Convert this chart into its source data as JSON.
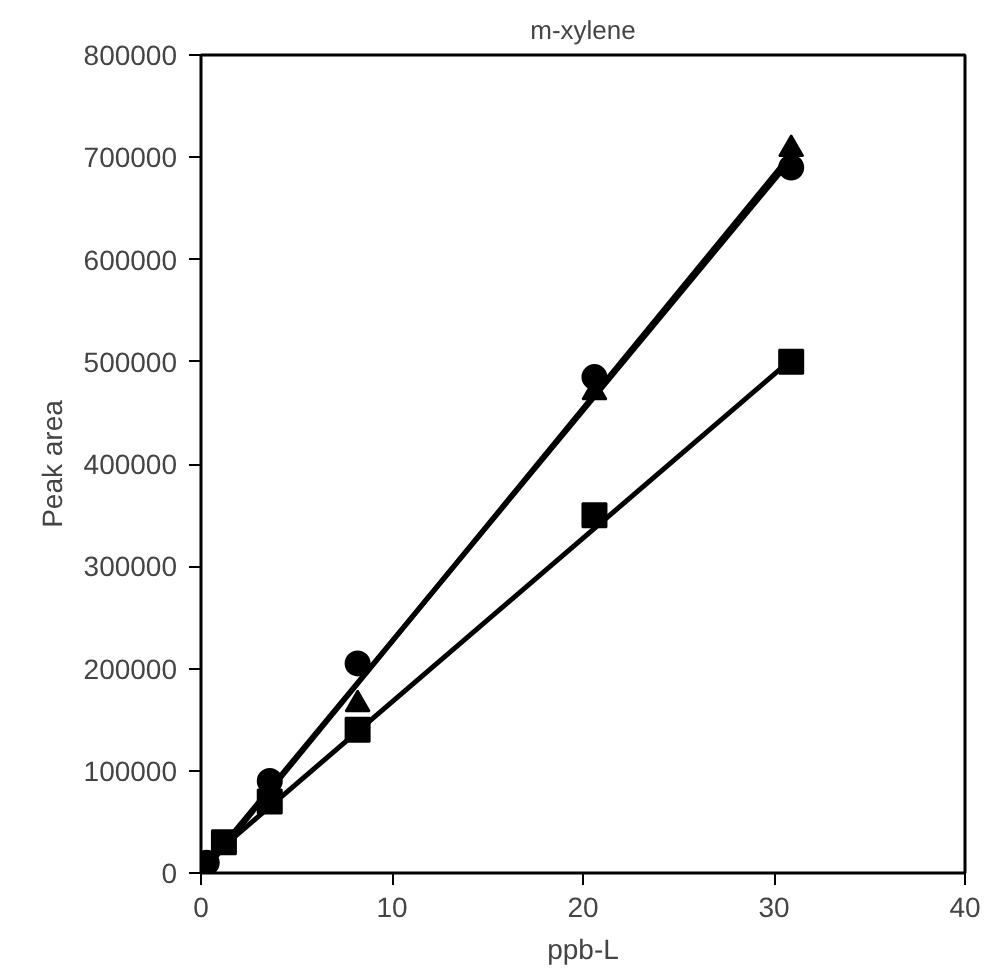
{
  "chart_data": {
    "type": "scatter",
    "title": "m-xylene",
    "xlabel": "ppb-L",
    "ylabel": "Peak area",
    "xlim": [
      0,
      40
    ],
    "xticks": [
      0,
      10,
      20,
      30,
      40
    ],
    "ylim": [
      0,
      800000
    ],
    "yticks": [
      0,
      100000,
      200000,
      300000,
      400000,
      500000,
      600000,
      700000,
      800000
    ],
    "grid": false,
    "series": [
      {
        "marker": "circle",
        "color": "#000000",
        "x": [
          0.3,
          3.6,
          8.2,
          20.6,
          30.9
        ],
        "values": [
          10000,
          90000,
          205000,
          485000,
          690000
        ]
      },
      {
        "marker": "triangle",
        "color": "#000000",
        "x": [
          8.2,
          20.6,
          30.9
        ],
        "values": [
          165000,
          470000,
          708000
        ]
      },
      {
        "marker": "square",
        "color": "#000000",
        "x": [
          1.2,
          3.6,
          8.2,
          20.6,
          30.9
        ],
        "values": [
          30000,
          70000,
          140000,
          350000,
          500000
        ]
      },
      {
        "type": "line",
        "marker": "none",
        "color": "#000000",
        "x": [
          0.3,
          30.9
        ],
        "values": [
          8000,
          698000
        ]
      },
      {
        "type": "line",
        "marker": "none",
        "color": "#000000",
        "x": [
          0.3,
          30.9
        ],
        "values": [
          5000,
          703000
        ]
      },
      {
        "type": "line",
        "marker": "none",
        "color": "#000000",
        "x": [
          0.3,
          30.9
        ],
        "values": [
          12000,
          502000
        ]
      }
    ]
  }
}
